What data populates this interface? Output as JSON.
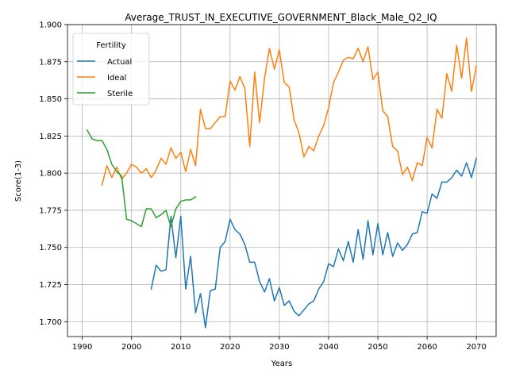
{
  "chart_data": {
    "type": "line",
    "title": "Average_TRUST_IN_EXECUTIVE_GOVERNMENT_Black_Male_Q2_IQ",
    "xlabel": "Years",
    "ylabel": "Score(1-3)",
    "xlim": [
      1987,
      2074
    ],
    "ylim": [
      1.69,
      1.9
    ],
    "xticks": [
      1990,
      2000,
      2010,
      2020,
      2030,
      2040,
      2050,
      2060,
      2070
    ],
    "yticks": [
      1.7,
      1.725,
      1.75,
      1.775,
      1.8,
      1.825,
      1.85,
      1.875,
      1.9
    ],
    "grid": true,
    "legend": {
      "title": "Fertility",
      "placement": "top-left"
    },
    "series": [
      {
        "name": "Actual",
        "color": "#1f77b4",
        "x": [
          2004,
          2005,
          2006,
          2007,
          2008,
          2009,
          2010,
          2011,
          2012,
          2013,
          2014,
          2015,
          2016,
          2017,
          2018,
          2019,
          2020,
          2021,
          2022,
          2023,
          2024,
          2025,
          2026,
          2027,
          2028,
          2029,
          2030,
          2031,
          2032,
          2033,
          2034,
          2035,
          2036,
          2037,
          2038,
          2039,
          2040,
          2041,
          2042,
          2043,
          2044,
          2045,
          2046,
          2047,
          2048,
          2049,
          2050,
          2051,
          2052,
          2053,
          2054,
          2055,
          2056,
          2057,
          2058,
          2059,
          2060,
          2061,
          2062,
          2063,
          2064,
          2065,
          2066,
          2067,
          2068,
          2069,
          2070
        ],
        "y": [
          1.722,
          1.738,
          1.734,
          1.735,
          1.771,
          1.743,
          1.771,
          1.722,
          1.744,
          1.706,
          1.719,
          1.696,
          1.721,
          1.722,
          1.75,
          1.754,
          1.769,
          1.762,
          1.759,
          1.752,
          1.74,
          1.74,
          1.727,
          1.72,
          1.729,
          1.714,
          1.723,
          1.711,
          1.714,
          1.707,
          1.704,
          1.708,
          1.712,
          1.714,
          1.722,
          1.727,
          1.739,
          1.737,
          1.749,
          1.741,
          1.754,
          1.74,
          1.762,
          1.742,
          1.768,
          1.745,
          1.766,
          1.745,
          1.76,
          1.744,
          1.753,
          1.748,
          1.752,
          1.759,
          1.76,
          1.774,
          1.773,
          1.786,
          1.783,
          1.794,
          1.794,
          1.797,
          1.802,
          1.798,
          1.807,
          1.797,
          1.81
        ]
      },
      {
        "name": "Ideal",
        "color": "#ff7f0e",
        "x": [
          1994,
          1995,
          1996,
          1997,
          1998,
          1999,
          2000,
          2001,
          2002,
          2003,
          2004,
          2005,
          2006,
          2007,
          2008,
          2009,
          2010,
          2011,
          2012,
          2013,
          2014,
          2015,
          2016,
          2017,
          2018,
          2019,
          2020,
          2021,
          2022,
          2023,
          2024,
          2025,
          2026,
          2027,
          2028,
          2029,
          2030,
          2031,
          2032,
          2033,
          2034,
          2035,
          2036,
          2037,
          2038,
          2039,
          2040,
          2041,
          2042,
          2043,
          2044,
          2045,
          2046,
          2047,
          2048,
          2049,
          2050,
          2051,
          2052,
          2053,
          2054,
          2055,
          2056,
          2057,
          2058,
          2059,
          2060,
          2061,
          2062,
          2063,
          2064,
          2065,
          2066,
          2067,
          2068,
          2069,
          2070
        ],
        "y": [
          1.792,
          1.805,
          1.797,
          1.804,
          1.796,
          1.8,
          1.806,
          1.804,
          1.8,
          1.803,
          1.797,
          1.802,
          1.81,
          1.806,
          1.817,
          1.81,
          1.814,
          1.801,
          1.816,
          1.805,
          1.843,
          1.83,
          1.83,
          1.834,
          1.838,
          1.838,
          1.862,
          1.856,
          1.865,
          1.857,
          1.818,
          1.868,
          1.834,
          1.864,
          1.884,
          1.87,
          1.883,
          1.861,
          1.858,
          1.836,
          1.827,
          1.811,
          1.818,
          1.815,
          1.825,
          1.832,
          1.844,
          1.861,
          1.868,
          1.876,
          1.878,
          1.877,
          1.884,
          1.875,
          1.885,
          1.863,
          1.868,
          1.842,
          1.838,
          1.818,
          1.815,
          1.799,
          1.804,
          1.795,
          1.807,
          1.805,
          1.824,
          1.817,
          1.843,
          1.837,
          1.867,
          1.855,
          1.886,
          1.864,
          1.891,
          1.855,
          1.872
        ]
      },
      {
        "name": "Sterile",
        "color": "#2ca02c",
        "x": [
          1991,
          1992,
          1993,
          1994,
          1995,
          1996,
          1997,
          1998,
          1999,
          2000,
          2001,
          2002,
          2003,
          2004,
          2005,
          2006,
          2007,
          2008,
          2009,
          2010,
          2011,
          2012,
          2013
        ],
        "y": [
          1.829,
          1.823,
          1.822,
          1.822,
          1.816,
          1.806,
          1.801,
          1.798,
          1.769,
          1.768,
          1.766,
          1.764,
          1.776,
          1.776,
          1.77,
          1.772,
          1.775,
          1.764,
          1.776,
          1.781,
          1.782,
          1.782,
          1.784
        ]
      }
    ]
  }
}
